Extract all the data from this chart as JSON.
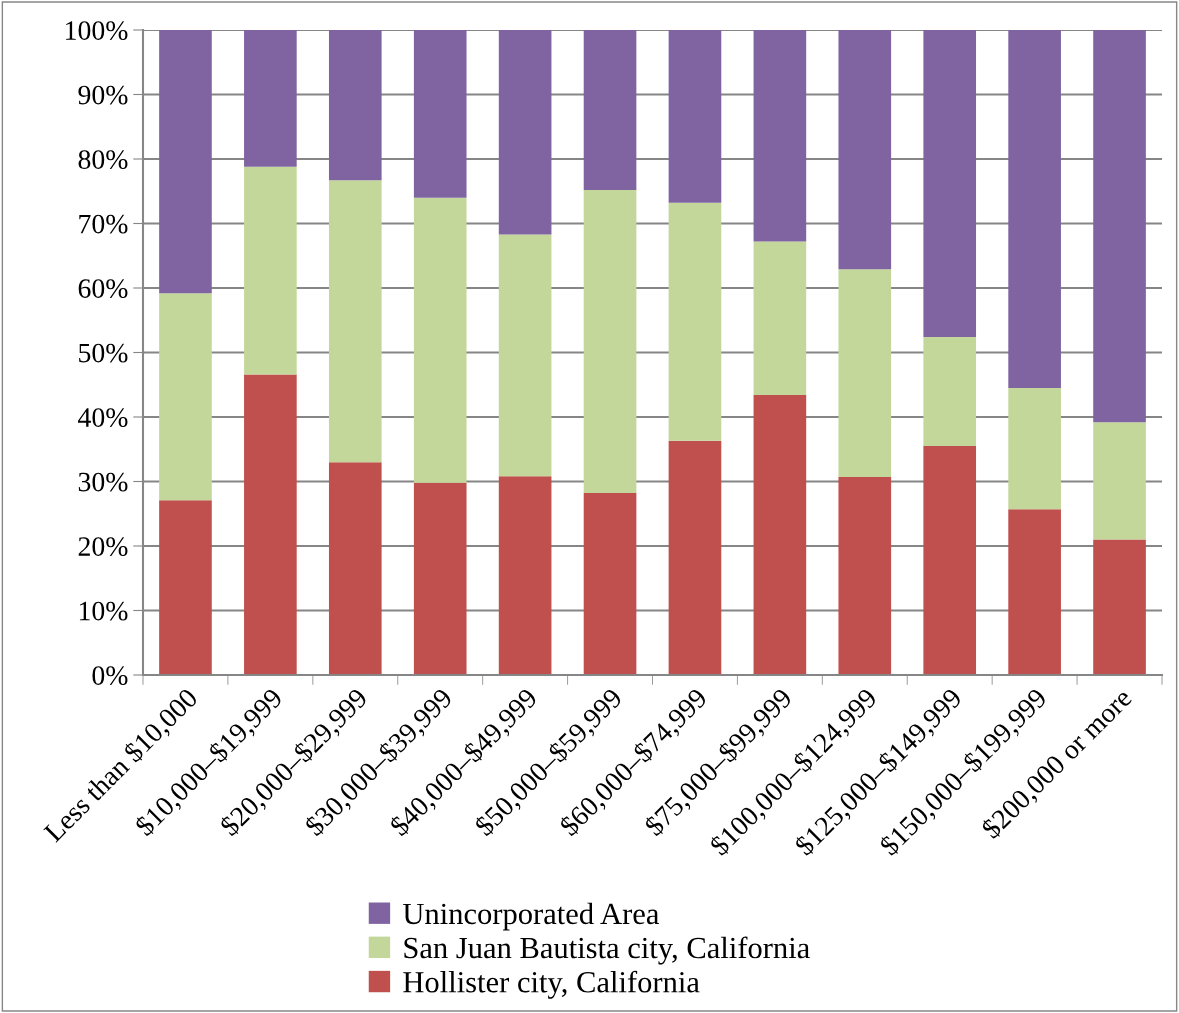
{
  "chart_data": {
    "type": "bar",
    "stacked": true,
    "categories": [
      "Less than $10,000",
      "$10,000–$19,999",
      "$20,000–$29,999",
      "$30,000–$39,999",
      "$40,000–$49,999",
      "$50,000–$59,999",
      "$60,000–$74,999",
      "$75,000–$99,999",
      "$100,000–$124,999",
      "$125,000–$149,999",
      "$150,000–$199,999",
      "$200,000 or more"
    ],
    "series": [
      {
        "name": "Hollister city, California",
        "color": "#c0504d",
        "values": [
          27.1,
          46.6,
          33.0,
          29.8,
          30.8,
          28.2,
          36.3,
          43.4,
          30.7,
          35.5,
          25.7,
          21.0
        ]
      },
      {
        "name": "San Juan Bautista city, California",
        "color": "#c4d79b",
        "values": [
          32.1,
          32.2,
          43.7,
          44.2,
          37.5,
          47.0,
          36.9,
          23.8,
          32.2,
          16.9,
          18.8,
          18.2
        ]
      },
      {
        "name": "Unincorporated Area",
        "color": "#8064a2",
        "values": [
          40.8,
          21.2,
          23.3,
          26.0,
          31.7,
          24.8,
          26.8,
          32.8,
          37.1,
          47.6,
          55.5,
          60.8
        ]
      }
    ],
    "ylim": [
      0,
      100
    ],
    "yticks": [
      {
        "value": 0,
        "label": "0%"
      },
      {
        "value": 10,
        "label": "10%"
      },
      {
        "value": 20,
        "label": "20%"
      },
      {
        "value": 30,
        "label": "30%"
      },
      {
        "value": 40,
        "label": "40%"
      },
      {
        "value": 50,
        "label": "50%"
      },
      {
        "value": 60,
        "label": "60%"
      },
      {
        "value": 70,
        "label": "70%"
      },
      {
        "value": 80,
        "label": "80%"
      },
      {
        "value": 90,
        "label": "90%"
      },
      {
        "value": 100,
        "label": "100%"
      }
    ],
    "grid": "y",
    "legend": "bottom"
  }
}
